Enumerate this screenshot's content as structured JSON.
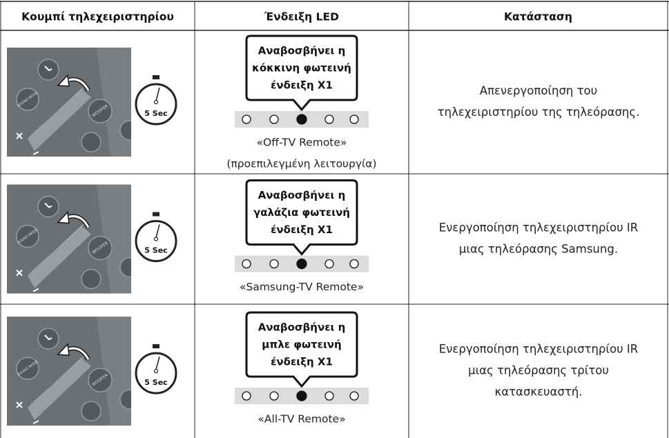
{
  "table": {
    "headers": [
      "Κουμπί τηλεχειριστηρίου",
      "Ένδειξη LED",
      "Κατάσταση"
    ],
    "rows": [
      {
        "image": {
          "timer": "5 Sec",
          "buttons": [
            "SOUND MODE",
            "WOOFER"
          ]
        },
        "bubble": [
          "Αναβοσβήνει η",
          "κόκκινη φωτεινή",
          "ένδειξη X1"
        ],
        "mode": [
          "«Off-TV Remote»",
          "(προεπιλεγμένη λειτουργία)"
        ],
        "status": [
          "Απενεργοποίηση του",
          "τηλεχειριστηρίου της τηλεόρασης."
        ]
      },
      {
        "image": {
          "timer": "5 Sec",
          "buttons": [
            "SOUND MODE",
            "WOOFER"
          ]
        },
        "bubble": [
          "Αναβοσβήνει η",
          "γαλάζια φωτεινή",
          "ένδειξη X1"
        ],
        "mode": [
          "«Samsung-TV Remote»"
        ],
        "status": [
          "Ενεργοποίηση τηλεχειριστηρίου IR",
          "μιας τηλεόρασης Samsung."
        ]
      },
      {
        "image": {
          "timer": "5 Sec",
          "buttons": [
            "SOUND MODE",
            "WOOFER"
          ]
        },
        "bubble": [
          "Αναβοσβήνει η",
          "μπλε φωτεινή",
          "ένδειξη X1"
        ],
        "mode": [
          "«All-TV Remote»"
        ],
        "status": [
          "Ενεργοποίηση τηλεχειριστηρίου IR",
          "μιας τηλεόρασης τρίτου",
          "κατασκευαστή."
        ]
      }
    ]
  }
}
